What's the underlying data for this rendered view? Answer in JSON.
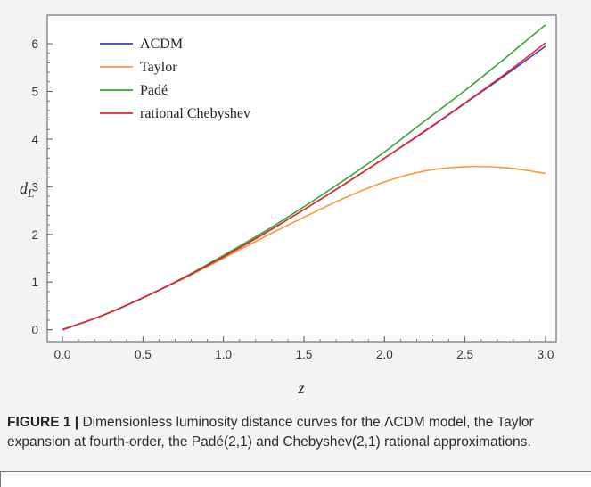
{
  "chart_data": {
    "type": "line",
    "xlabel": "z",
    "ylabel": "d",
    "ylabel_subscript": "L",
    "xlim": [
      0,
      3
    ],
    "ylim": [
      -0.25,
      6.6
    ],
    "xticks": [
      "0.0",
      "0.5",
      "1.0",
      "1.5",
      "2.0",
      "2.5",
      "3.0"
    ],
    "xtick_values": [
      0,
      0.5,
      1.0,
      1.5,
      2.0,
      2.5,
      3.0
    ],
    "yticks": [
      "0",
      "1",
      "2",
      "3",
      "4",
      "5",
      "6"
    ],
    "ytick_values": [
      0,
      1,
      2,
      3,
      4,
      5,
      6
    ],
    "grid": false,
    "legend_position": "top-left",
    "x": [
      0,
      0.25,
      0.5,
      0.75,
      1.0,
      1.25,
      1.5,
      1.75,
      2.0,
      2.25,
      2.5,
      2.75,
      3.0
    ],
    "series": [
      {
        "name": "ΛCDM",
        "color": "#3b3bcc",
        "values": [
          0,
          0.3,
          0.67,
          1.08,
          1.53,
          2.01,
          2.52,
          3.05,
          3.6,
          4.16,
          4.75,
          5.34,
          5.95
        ]
      },
      {
        "name": "Taylor",
        "color": "#f59a3a",
        "values": [
          0,
          0.3,
          0.67,
          1.07,
          1.5,
          1.94,
          2.36,
          2.76,
          3.1,
          3.33,
          3.42,
          3.4,
          3.28
        ]
      },
      {
        "name": "Padé",
        "color": "#33a833",
        "values": [
          0,
          0.3,
          0.67,
          1.09,
          1.56,
          2.05,
          2.58,
          3.14,
          3.73,
          4.38,
          5.02,
          5.7,
          6.4
        ]
      },
      {
        "name": "rational Chebyshev",
        "color": "#e8262a",
        "values": [
          0,
          0.3,
          0.67,
          1.08,
          1.53,
          2.01,
          2.52,
          3.05,
          3.6,
          4.17,
          4.76,
          5.37,
          6.02
        ]
      }
    ]
  },
  "caption": {
    "label": "FIGURE 1 |",
    "text": "Dimensionless luminosity distance curves for the ΛCDM model, the Taylor expansion at fourth-order, the Padé(2,1) and Chebyshev(2,1) rational approximations."
  }
}
